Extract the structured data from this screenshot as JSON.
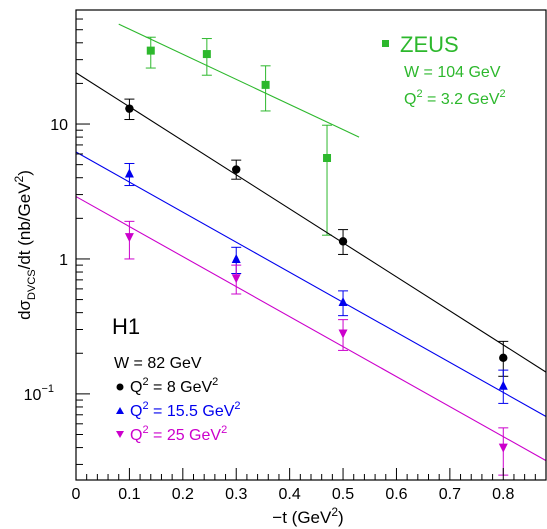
{
  "chart_data": {
    "type": "scatter",
    "xlabel_main": "−t (GeV",
    "xlabel_sup": "2",
    "xlabel_end": ")",
    "ylabel_pre": "dσ",
    "ylabel_sub": "DVCS",
    "ylabel_mid": "/dt (nb/GeV",
    "ylabel_sup": "2",
    "ylabel_end": ")",
    "xlim": [
      0,
      0.88
    ],
    "ylim": [
      0.023,
      70
    ],
    "yscale": "log",
    "x_ticks": [
      {
        "value": 0,
        "label": "0"
      },
      {
        "value": 0.1,
        "label": "0.1"
      },
      {
        "value": 0.2,
        "label": "0.2"
      },
      {
        "value": 0.3,
        "label": "0.3"
      },
      {
        "value": 0.4,
        "label": "0.4"
      },
      {
        "value": 0.5,
        "label": "0.5"
      },
      {
        "value": 0.6,
        "label": "0.6"
      },
      {
        "value": 0.7,
        "label": "0.7"
      },
      {
        "value": 0.8,
        "label": "0.8"
      }
    ],
    "y_ticks": [
      {
        "value": 10,
        "label": "10"
      },
      {
        "value": 1,
        "label": "1"
      },
      {
        "value": 0.1,
        "label_base": "10",
        "label_exp": "−1"
      }
    ],
    "grid": false,
    "series": [
      {
        "key": "zeus",
        "color": "#2db82d",
        "marker": "square",
        "points": [
          {
            "x": 0.14,
            "y": 35,
            "lo": 26,
            "hi": 44
          },
          {
            "x": 0.245,
            "y": 33,
            "lo": 23,
            "hi": 43
          },
          {
            "x": 0.355,
            "y": 19.5,
            "lo": 12.5,
            "hi": 27
          },
          {
            "x": 0.47,
            "y": 5.6,
            "lo": 1.5,
            "hi": 9.8
          }
        ],
        "fit": {
          "x0": 0.08,
          "y0": 55,
          "x1": 0.53,
          "y1": 8.0
        }
      },
      {
        "key": "q2_8",
        "color": "#000000",
        "marker": "circle",
        "points": [
          {
            "x": 0.1,
            "y": 13,
            "lo": 10.8,
            "hi": 15.3
          },
          {
            "x": 0.3,
            "y": 4.6,
            "lo": 3.9,
            "hi": 5.4
          },
          {
            "x": 0.5,
            "y": 1.35,
            "lo": 1.08,
            "hi": 1.65
          },
          {
            "x": 0.8,
            "y": 0.185,
            "lo": 0.135,
            "hi": 0.245
          }
        ],
        "fit": {
          "x0": 0.0,
          "y0": 24,
          "x1": 0.88,
          "y1": 0.145
        }
      },
      {
        "key": "q2_15_5",
        "color": "#0000ee",
        "marker": "triangle-up",
        "points": [
          {
            "x": 0.1,
            "y": 4.3,
            "lo": 3.5,
            "hi": 5.1
          },
          {
            "x": 0.3,
            "y": 1.0,
            "lo": 0.78,
            "hi": 1.22
          },
          {
            "x": 0.5,
            "y": 0.48,
            "lo": 0.38,
            "hi": 0.58
          },
          {
            "x": 0.8,
            "y": 0.115,
            "lo": 0.085,
            "hi": 0.15
          }
        ],
        "fit": {
          "x0": 0.0,
          "y0": 6.2,
          "x1": 0.88,
          "y1": 0.068
        }
      },
      {
        "key": "q2_25",
        "color": "#cc00cc",
        "marker": "triangle-down",
        "points": [
          {
            "x": 0.1,
            "y": 1.45,
            "lo": 1.0,
            "hi": 1.9
          },
          {
            "x": 0.3,
            "y": 0.72,
            "lo": 0.55,
            "hi": 0.9
          },
          {
            "x": 0.5,
            "y": 0.28,
            "lo": 0.21,
            "hi": 0.355
          },
          {
            "x": 0.8,
            "y": 0.04,
            "lo": 0.025,
            "hi": 0.056
          }
        ],
        "fit": {
          "x0": 0.0,
          "y0": 2.9,
          "x1": 0.88,
          "y1": 0.032
        }
      }
    ]
  },
  "legend_zeus": {
    "label": "ZEUS",
    "w_text": "W = 104 GeV",
    "q2_pre": "Q",
    "q2_sup": "2",
    "q2_mid": " = 3.2 GeV",
    "q2_sup2": "2"
  },
  "legend_h1": {
    "label": "H1",
    "w_text": "W = 82 GeV",
    "entries": [
      {
        "pre": "Q",
        "sup": "2",
        "mid": " = 8 GeV",
        "sup2": "2"
      },
      {
        "pre": "Q",
        "sup": "2",
        "mid": " = 15.5 GeV",
        "sup2": "2"
      },
      {
        "pre": "Q",
        "sup": "2",
        "mid": " = 25 GeV",
        "sup2": "2"
      }
    ]
  }
}
